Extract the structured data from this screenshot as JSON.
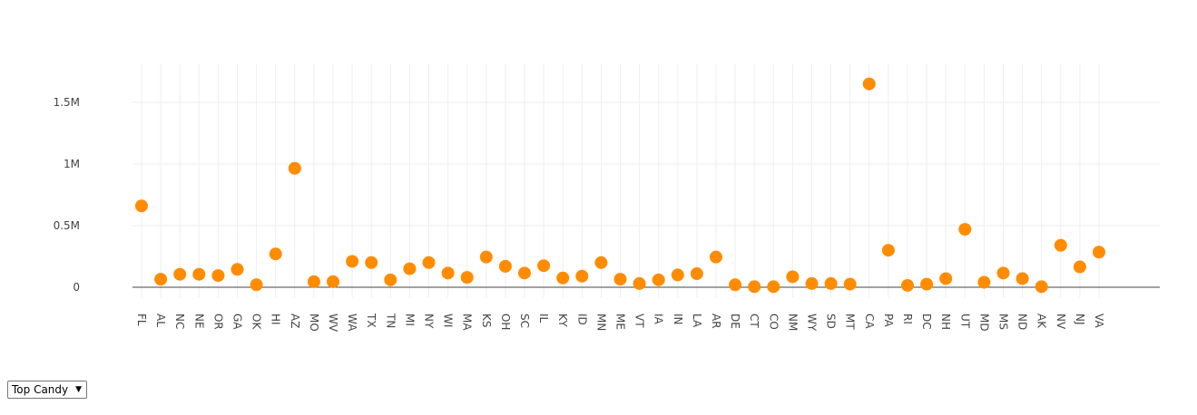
{
  "chart_data": {
    "type": "scatter",
    "title": "",
    "xlabel": "",
    "ylabel": "",
    "categories": [
      "FL",
      "AL",
      "NC",
      "NE",
      "OR",
      "GA",
      "OK",
      "HI",
      "AZ",
      "MO",
      "WV",
      "WA",
      "TX",
      "TN",
      "MI",
      "NY",
      "WI",
      "MA",
      "KS",
      "OH",
      "SC",
      "IL",
      "KY",
      "ID",
      "MN",
      "ME",
      "VT",
      "IA",
      "IN",
      "LA",
      "AR",
      "DE",
      "CT",
      "CO",
      "NM",
      "WY",
      "SD",
      "MT",
      "CA",
      "PA",
      "RI",
      "DC",
      "NH",
      "UT",
      "MD",
      "MS",
      "ND",
      "AK",
      "NV",
      "NJ",
      "VA"
    ],
    "series": [
      {
        "values": [
          660000,
          65000,
          105000,
          105000,
          95000,
          145000,
          20000,
          270000,
          965000,
          45000,
          45000,
          210000,
          200000,
          60000,
          150000,
          200000,
          115000,
          80000,
          245000,
          170000,
          115000,
          175000,
          75000,
          90000,
          200000,
          65000,
          30000,
          60000,
          100000,
          110000,
          245000,
          20000,
          5000,
          5000,
          85000,
          30000,
          30000,
          25000,
          1650000,
          300000,
          15000,
          25000,
          70000,
          470000,
          40000,
          115000,
          70000,
          5000,
          340000,
          165000,
          285000
        ],
        "color": "#ff8c00"
      }
    ],
    "yticks": [
      0,
      500000,
      1000000,
      1500000
    ],
    "ytick_labels": [
      "0",
      "0.5M",
      "1M",
      "1.5M"
    ],
    "ylim": [
      -50000,
      1800000
    ],
    "grid": true,
    "legend": "none"
  },
  "controls": {
    "dropdown": {
      "selected": "Top Candy"
    }
  }
}
